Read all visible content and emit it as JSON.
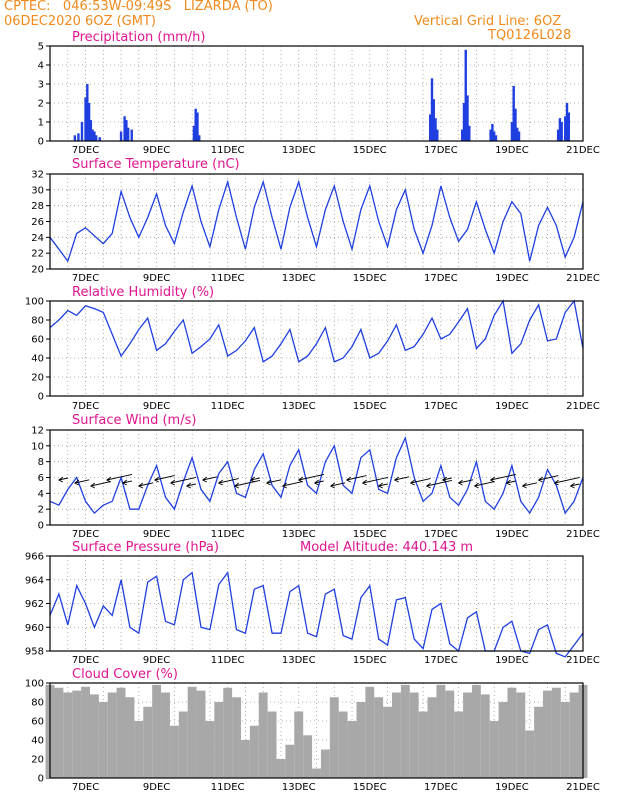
{
  "header": {
    "line1": "CPTEC:   046:53W-09:49S   LIZARDA (TO)",
    "line2": "06DEC2020 6OZ (GMT)",
    "right1": "Vertical Grid Line: 6OZ",
    "right2": "TQ0126L028"
  },
  "x_labels": [
    "7DEC",
    "9DEC",
    "11DEC",
    "13DEC",
    "15DEC",
    "17DEC",
    "19DEC",
    "21DEC"
  ],
  "colors": {
    "header": "#f08a1c",
    "title": "#e0158f",
    "line": "#1f3fe0",
    "cloud": "#a8a8a8"
  },
  "chart_data": [
    {
      "type": "bar",
      "title": "Precipitation (mm/h)",
      "ylim": [
        0,
        5
      ],
      "yticks": [
        0,
        1,
        2,
        3,
        4,
        5
      ],
      "x": [
        0.7,
        0.8,
        0.9,
        1.0,
        1.05,
        1.1,
        1.15,
        1.2,
        1.25,
        1.3,
        1.4,
        2.0,
        2.1,
        2.15,
        2.2,
        2.3,
        4.05,
        4.1,
        4.15,
        4.2,
        10.7,
        10.75,
        10.8,
        10.85,
        10.9,
        11.6,
        11.65,
        11.7,
        11.75,
        11.8,
        12.4,
        12.45,
        12.5,
        12.55,
        13.0,
        13.05,
        13.1,
        13.15,
        13.2,
        14.3,
        14.35,
        14.4,
        14.5,
        14.55,
        14.6
      ],
      "values": [
        0.3,
        0.4,
        1.0,
        2.3,
        3.0,
        2.0,
        1.1,
        0.6,
        0.5,
        0.3,
        0.2,
        0.5,
        1.3,
        1.1,
        0.7,
        0.6,
        0.8,
        1.7,
        1.5,
        0.3,
        1.4,
        3.3,
        2.2,
        1.2,
        0.6,
        0.6,
        2.0,
        4.8,
        2.4,
        0.8,
        0.6,
        0.9,
        0.5,
        0.3,
        1.0,
        2.9,
        1.7,
        0.7,
        0.5,
        0.6,
        1.2,
        1.0,
        1.3,
        2.0,
        1.5
      ]
    },
    {
      "type": "line",
      "title": "Surface Temperature (nC)",
      "ylim": [
        20,
        32
      ],
      "yticks": [
        20,
        22,
        24,
        26,
        28,
        30,
        32
      ],
      "x": [
        0,
        0.25,
        0.5,
        0.75,
        1.0,
        1.25,
        1.5,
        1.75,
        2.0,
        2.25,
        2.5,
        2.75,
        3.0,
        3.25,
        3.5,
        3.75,
        4.0,
        4.25,
        4.5,
        4.75,
        5.0,
        5.25,
        5.5,
        5.75,
        6.0,
        6.25,
        6.5,
        6.75,
        7.0,
        7.25,
        7.5,
        7.75,
        8.0,
        8.25,
        8.5,
        8.75,
        9.0,
        9.25,
        9.5,
        9.75,
        10.0,
        10.25,
        10.5,
        10.75,
        11.0,
        11.25,
        11.5,
        11.75,
        12.0,
        12.25,
        12.5,
        12.75,
        13.0,
        13.25,
        13.5,
        13.75,
        14.0,
        14.25,
        14.5,
        14.75,
        15.0
      ],
      "values": [
        24.0,
        22.5,
        21.0,
        24.5,
        25.2,
        24.2,
        23.2,
        24.5,
        29.8,
        26.5,
        24.0,
        26.5,
        29.5,
        25.5,
        23.2,
        27.2,
        30.5,
        26.0,
        22.8,
        27.5,
        31.0,
        26.5,
        22.5,
        27.8,
        31.0,
        26.5,
        22.5,
        27.8,
        31.0,
        26.5,
        22.8,
        27.5,
        30.5,
        26.0,
        22.5,
        27.5,
        30.5,
        26.0,
        22.8,
        27.5,
        30.0,
        25.0,
        22.0,
        25.5,
        30.5,
        26.5,
        23.5,
        25.0,
        28.5,
        25.0,
        22.0,
        26.0,
        28.5,
        27.0,
        21.0,
        25.5,
        27.8,
        25.5,
        21.5,
        24.0,
        28.5
      ]
    },
    {
      "type": "line",
      "title": "Relative Humidity (%)",
      "ylim": [
        0,
        100
      ],
      "yticks": [
        0,
        20,
        40,
        60,
        80,
        100
      ],
      "x": [
        0,
        0.25,
        0.5,
        0.75,
        1.0,
        1.25,
        1.5,
        1.75,
        2.0,
        2.25,
        2.5,
        2.75,
        3.0,
        3.25,
        3.5,
        3.75,
        4.0,
        4.25,
        4.5,
        4.75,
        5.0,
        5.25,
        5.5,
        5.75,
        6.0,
        6.25,
        6.5,
        6.75,
        7.0,
        7.25,
        7.5,
        7.75,
        8.0,
        8.25,
        8.5,
        8.75,
        9.0,
        9.25,
        9.5,
        9.75,
        10.0,
        10.25,
        10.5,
        10.75,
        11.0,
        11.25,
        11.5,
        11.75,
        12.0,
        12.25,
        12.5,
        12.75,
        13.0,
        13.25,
        13.5,
        13.75,
        14.0,
        14.25,
        14.5,
        14.75,
        15.0
      ],
      "values": [
        72,
        80,
        90,
        85,
        95,
        92,
        88,
        65,
        42,
        55,
        70,
        82,
        48,
        55,
        68,
        80,
        45,
        52,
        60,
        75,
        42,
        48,
        58,
        72,
        36,
        42,
        55,
        70,
        36,
        42,
        55,
        72,
        36,
        40,
        52,
        70,
        40,
        45,
        58,
        75,
        48,
        52,
        65,
        82,
        60,
        65,
        78,
        92,
        50,
        60,
        85,
        100,
        45,
        55,
        80,
        96,
        58,
        60,
        88,
        100,
        50
      ]
    },
    {
      "type": "line",
      "title": "Surface Wind (m/s)",
      "ylim": [
        0,
        12
      ],
      "yticks": [
        0,
        2,
        4,
        6,
        8,
        10,
        12
      ],
      "x": [
        0,
        0.25,
        0.5,
        0.75,
        1.0,
        1.25,
        1.5,
        1.75,
        2.0,
        2.25,
        2.5,
        2.75,
        3.0,
        3.25,
        3.5,
        3.75,
        4.0,
        4.25,
        4.5,
        4.75,
        5.0,
        5.25,
        5.5,
        5.75,
        6.0,
        6.25,
        6.5,
        6.75,
        7.0,
        7.25,
        7.5,
        7.75,
        8.0,
        8.25,
        8.5,
        8.75,
        9.0,
        9.25,
        9.5,
        9.75,
        10.0,
        10.25,
        10.5,
        10.75,
        11.0,
        11.25,
        11.5,
        11.75,
        12.0,
        12.25,
        12.5,
        12.75,
        13.0,
        13.25,
        13.5,
        13.75,
        14.0,
        14.25,
        14.5,
        14.75,
        15.0
      ],
      "values": [
        3.0,
        2.5,
        4.5,
        6.0,
        3.0,
        1.5,
        2.5,
        3.0,
        6.0,
        2.0,
        2.0,
        5.0,
        7.5,
        3.5,
        2.0,
        5.5,
        8.5,
        4.5,
        3.0,
        6.5,
        8.0,
        4.0,
        3.5,
        7.0,
        9.0,
        5.0,
        3.5,
        7.5,
        9.5,
        5.0,
        4.0,
        8.0,
        10.0,
        5.0,
        4.0,
        8.5,
        9.5,
        4.5,
        4.0,
        8.5,
        11.0,
        6.0,
        3.0,
        4.0,
        7.5,
        3.5,
        2.5,
        4.5,
        8.0,
        3.0,
        2.0,
        4.0,
        7.5,
        3.0,
        1.5,
        3.5,
        7.0,
        5.0,
        1.5,
        3.0,
        6.0
      ]
    },
    {
      "type": "line",
      "title": "Surface Pressure (hPa)",
      "subtitle": "Model Altitude: 440.143 m",
      "ylim": [
        958,
        966
      ],
      "yticks": [
        958,
        960,
        962,
        964,
        966
      ],
      "x": [
        0,
        0.25,
        0.5,
        0.75,
        1.0,
        1.25,
        1.5,
        1.75,
        2.0,
        2.25,
        2.5,
        2.75,
        3.0,
        3.25,
        3.5,
        3.75,
        4.0,
        4.25,
        4.5,
        4.75,
        5.0,
        5.25,
        5.5,
        5.75,
        6.0,
        6.25,
        6.5,
        6.75,
        7.0,
        7.25,
        7.5,
        7.75,
        8.0,
        8.25,
        8.5,
        8.75,
        9.0,
        9.25,
        9.5,
        9.75,
        10.0,
        10.25,
        10.5,
        10.75,
        11.0,
        11.25,
        11.5,
        11.75,
        12.0,
        12.25,
        12.5,
        12.75,
        13.0,
        13.25,
        13.5,
        13.75,
        14.0,
        14.25,
        14.5,
        14.75,
        15.0
      ],
      "values": [
        961.0,
        962.8,
        960.2,
        963.5,
        962.0,
        960.0,
        961.8,
        961.0,
        964.0,
        960.0,
        959.5,
        963.8,
        964.3,
        960.5,
        960.2,
        964.0,
        964.6,
        960.0,
        959.8,
        963.6,
        964.6,
        959.8,
        959.5,
        963.2,
        963.5,
        959.5,
        959.5,
        963.0,
        963.5,
        959.5,
        959.2,
        962.8,
        963.2,
        959.3,
        959.0,
        962.5,
        963.5,
        959.0,
        958.5,
        962.3,
        962.5,
        959.0,
        958.2,
        961.5,
        962.0,
        958.6,
        958.0,
        960.8,
        961.3,
        958.0,
        958.0,
        960.0,
        960.5,
        958.0,
        957.8,
        959.8,
        960.2,
        957.8,
        957.5,
        958.5,
        959.5
      ]
    },
    {
      "type": "area",
      "title": "Cloud Cover (%)",
      "ylim": [
        0,
        100
      ],
      "yticks": [
        0,
        20,
        40,
        60,
        80,
        100
      ],
      "x": [
        0,
        0.25,
        0.5,
        0.75,
        1.0,
        1.25,
        1.5,
        1.75,
        2.0,
        2.25,
        2.5,
        2.75,
        3.0,
        3.25,
        3.5,
        3.75,
        4.0,
        4.25,
        4.5,
        4.75,
        5.0,
        5.25,
        5.5,
        5.75,
        6.0,
        6.25,
        6.5,
        6.75,
        7.0,
        7.25,
        7.5,
        7.75,
        8.0,
        8.25,
        8.5,
        8.75,
        9.0,
        9.25,
        9.5,
        9.75,
        10.0,
        10.25,
        10.5,
        10.75,
        11.0,
        11.25,
        11.5,
        11.75,
        12.0,
        12.25,
        12.5,
        12.75,
        13.0,
        13.25,
        13.5,
        13.75,
        14.0,
        14.25,
        14.5,
        14.75,
        15.0
      ],
      "values": [
        98,
        95,
        90,
        92,
        96,
        88,
        80,
        90,
        95,
        85,
        60,
        75,
        98,
        90,
        55,
        70,
        96,
        92,
        60,
        80,
        95,
        85,
        40,
        55,
        90,
        70,
        20,
        35,
        70,
        45,
        10,
        30,
        85,
        70,
        60,
        80,
        96,
        85,
        75,
        90,
        98,
        90,
        70,
        85,
        98,
        92,
        70,
        90,
        98,
        88,
        60,
        80,
        95,
        90,
        50,
        75,
        92,
        95,
        80,
        90,
        98
      ]
    }
  ]
}
